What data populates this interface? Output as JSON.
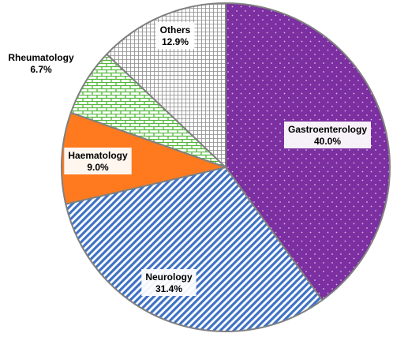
{
  "chart_data": {
    "type": "pie",
    "title": "",
    "legend": "none",
    "slices": [
      {
        "category": "Gastroenterology",
        "value": 40.0,
        "value_label": "40.0%",
        "color": "#7b2fa0",
        "pattern": "dots"
      },
      {
        "category": "Neurology",
        "value": 31.4,
        "value_label": "31.4%",
        "color": "#3f72c4",
        "pattern": "diagonal-stripes"
      },
      {
        "category": "Haematology",
        "value": 9.0,
        "value_label": "9.0%",
        "color": "#ff7a1f",
        "pattern": "solid"
      },
      {
        "category": "Rheumatology",
        "value": 6.7,
        "value_label": "6.7%",
        "color": "#52b83b",
        "pattern": "bricks"
      },
      {
        "category": "Others",
        "value": 12.9,
        "value_label": "12.9%",
        "color": "#8c8c8c",
        "pattern": "grid"
      }
    ]
  }
}
